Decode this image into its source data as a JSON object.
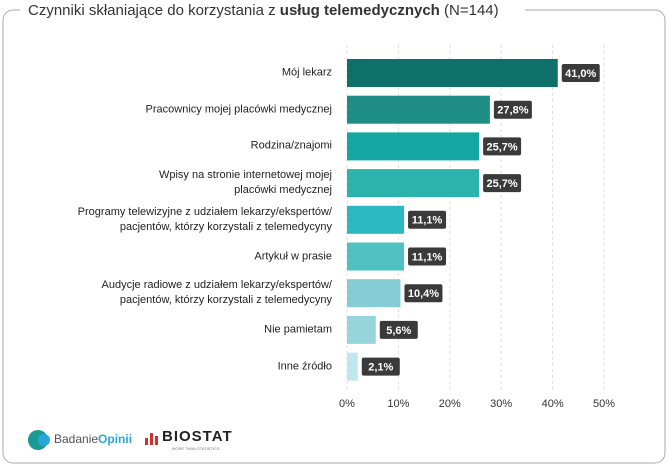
{
  "chart_data": {
    "type": "bar",
    "orientation": "horizontal",
    "title_parts": [
      "Czynniki skłaniające do korzystania z ",
      "usług telemedycznych",
      " (N=144)"
    ],
    "categories": [
      "Mój lekarz",
      "Pracownicy mojej placówki medycznej",
      "Rodzina/znajomi",
      "Wpisy na stronie internetowej mojej\nplacówki medycznej",
      "Programy telewizyjne z udziałem lekarzy/ekspertów/\npacjentów, którzy korzystali z telemedycyny",
      "Artykuł w prasie",
      "Audycje radiowe z udziałem lekarzy/ekspertów/\npacjentów, którzy korzystali z telemedycyny",
      "Nie pamietam",
      "Inne źródło"
    ],
    "values": [
      41.0,
      27.8,
      25.7,
      25.7,
      11.1,
      11.1,
      10.4,
      5.6,
      2.1
    ],
    "value_labels": [
      "41,0%",
      "27,8%",
      "25,7%",
      "25,7%",
      "11,1%",
      "11,1%",
      "10,4%",
      "5,6%",
      "2,1%"
    ],
    "colors": [
      "#0f6f69",
      "#1d8d86",
      "#14a7a1",
      "#2bb3ac",
      "#2bb8c0",
      "#4fc1c1",
      "#86ccd5",
      "#98d4dc",
      "#c2e6ed"
    ],
    "xlim": [
      0,
      50
    ],
    "xticks": [
      {
        "value": 0,
        "label": "0%"
      },
      {
        "value": 10,
        "label": "10%"
      },
      {
        "value": 20,
        "label": "20%"
      },
      {
        "value": 30,
        "label": "30%"
      },
      {
        "value": 40,
        "label": "40%"
      },
      {
        "value": 50,
        "label": "50%"
      }
    ],
    "grid": true
  },
  "logos": {
    "badanie_opinii": [
      "Badanie",
      "Opinii"
    ],
    "biostat": "BIOSTAT",
    "biostat_tagline": "MORE THAN STATISTICS"
  }
}
